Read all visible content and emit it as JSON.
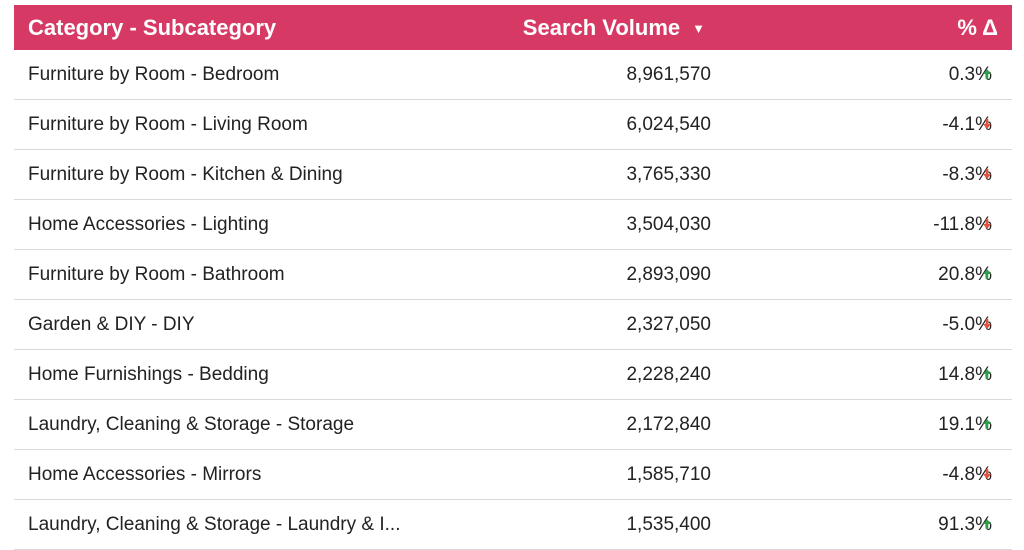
{
  "colors": {
    "header_bg": "#d63a64",
    "up": "#2e9e4a",
    "down": "#e0533f"
  },
  "chart_data": {
    "type": "table",
    "columns": [
      "Category - Subcategory",
      "Search Volume",
      "% Δ"
    ],
    "sort_icon": "triangle-down-icon",
    "rows": [
      {
        "category": "Furniture by Room - Bedroom",
        "volume": "8,961,570",
        "change": "0.3%",
        "trend": "up"
      },
      {
        "category": "Furniture by Room - Living Room",
        "volume": "6,024,540",
        "change": "-4.1%",
        "trend": "down"
      },
      {
        "category": "Furniture by Room - Kitchen & Dining",
        "volume": "3,765,330",
        "change": "-8.3%",
        "trend": "down"
      },
      {
        "category": "Home Accessories - Lighting",
        "volume": "3,504,030",
        "change": "-11.8%",
        "trend": "down"
      },
      {
        "category": "Furniture by Room - Bathroom",
        "volume": "2,893,090",
        "change": "20.8%",
        "trend": "up"
      },
      {
        "category": "Garden & DIY - DIY",
        "volume": "2,327,050",
        "change": "-5.0%",
        "trend": "down"
      },
      {
        "category": "Home Furnishings - Bedding",
        "volume": "2,228,240",
        "change": "14.8%",
        "trend": "up"
      },
      {
        "category": "Laundry, Cleaning & Storage - Storage",
        "volume": "2,172,840",
        "change": "19.1%",
        "trend": "up"
      },
      {
        "category": "Home Accessories - Mirrors",
        "volume": "1,585,710",
        "change": "-4.8%",
        "trend": "down"
      },
      {
        "category": "Laundry, Cleaning & Storage - Laundry & I...",
        "volume": "1,535,400",
        "change": "91.3%",
        "trend": "up"
      }
    ]
  }
}
